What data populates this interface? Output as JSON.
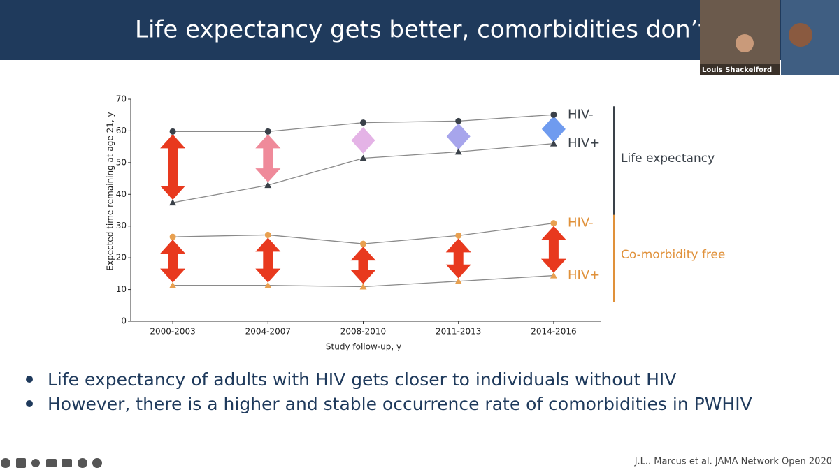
{
  "slide": {
    "title": "Life expectancy gets better, comorbidities don’t",
    "bullets": [
      "Life expectancy of adults with HIV gets closer to individuals without HIV",
      "However, there is a higher and stable occurrence rate of comorbidities in PWHIV"
    ],
    "citation": "J.L.. Marcus et al. JAMA Network Open 2020"
  },
  "video": {
    "participant": "Louis Shackelford"
  },
  "chart_data": {
    "type": "line",
    "x_label": "Study follow-up, y",
    "y_label": "Expected time remaining at age 21, y",
    "categories": [
      "2000-2003",
      "2004-2007",
      "2008-2010",
      "2011-2013",
      "2014-2016"
    ],
    "ylim": [
      0,
      70
    ],
    "yticks": [
      0,
      10,
      20,
      30,
      40,
      50,
      60,
      70
    ],
    "grid": false,
    "line_color": "#8a8a8a",
    "series": [
      {
        "name": "HIV-",
        "group": 0,
        "marker": "circle",
        "color": "#3a4149",
        "values": [
          59.8,
          59.8,
          62.6,
          63.1,
          65.1
        ]
      },
      {
        "name": "HIV+",
        "group": 0,
        "marker": "triangle",
        "color": "#3a4149",
        "values": [
          37.4,
          42.9,
          51.4,
          53.4,
          56.0
        ]
      },
      {
        "name": "HIV-",
        "group": 1,
        "marker": "circle",
        "color": "#e8a050",
        "values": [
          26.6,
          27.2,
          24.4,
          27.0,
          30.9
        ]
      },
      {
        "name": "HIV+",
        "group": 1,
        "marker": "triangle",
        "color": "#e8a050",
        "values": [
          11.3,
          11.3,
          10.9,
          12.6,
          14.4
        ]
      }
    ],
    "groups": [
      {
        "label": "Life expectancy",
        "color": "#3a4149",
        "gap_colors": [
          "#e8391e",
          "#ef8a9a",
          "#e4b3e6",
          "#a7a5ec",
          "#6f9bef"
        ]
      },
      {
        "label": "Co-morbidity free",
        "color": "#e0913a",
        "gap_colors": [
          "#e8391e",
          "#e8391e",
          "#e8391e",
          "#e8391e",
          "#e8391e"
        ]
      }
    ]
  }
}
